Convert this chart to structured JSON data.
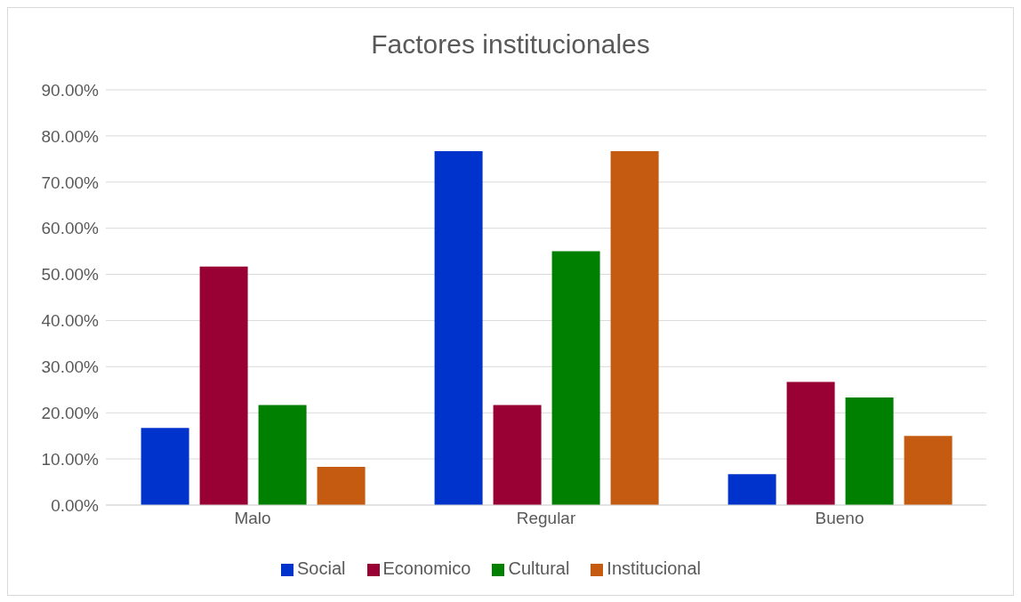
{
  "chart_data": {
    "type": "bar",
    "title": "Factores institucionales",
    "categories": [
      "Malo",
      "Regular",
      "Bueno"
    ],
    "series": [
      {
        "name": "Social",
        "color": "#0033cc",
        "values": [
          16.7,
          76.7,
          6.7
        ]
      },
      {
        "name": "Economico",
        "color": "#990033",
        "values": [
          51.7,
          21.7,
          26.7
        ]
      },
      {
        "name": "Cultural",
        "color": "#008000",
        "values": [
          21.7,
          55,
          23.3
        ]
      },
      {
        "name": "Institucional",
        "color": "#c55a11",
        "values": [
          8.3,
          76.7,
          15
        ]
      }
    ],
    "ylim": [
      0,
      90
    ],
    "yticks": [
      {
        "value": 0,
        "label": "0.00%"
      },
      {
        "value": 10,
        "label": "10.00%"
      },
      {
        "value": 20,
        "label": "20.00%"
      },
      {
        "value": 30,
        "label": "30.00%"
      },
      {
        "value": 40,
        "label": "40.00%"
      },
      {
        "value": 50,
        "label": "50.00%"
      },
      {
        "value": 60,
        "label": "60.00%"
      },
      {
        "value": 70,
        "label": "70.00%"
      },
      {
        "value": 80,
        "label": "80.00%"
      },
      {
        "value": 90,
        "label": "90.00%"
      }
    ],
    "grid": "y",
    "legend": "bottom"
  }
}
